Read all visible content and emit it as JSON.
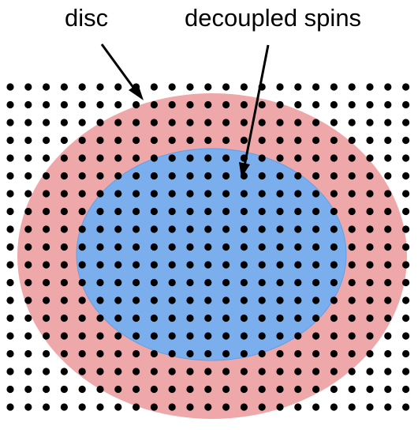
{
  "labels": {
    "disc": "disc",
    "decoupled_spins": "decoupled spins"
  },
  "colors": {
    "disc": "#e98b8e",
    "decoupled": "#74aef0",
    "dot": "#000000",
    "background": "#ffffff"
  },
  "lattice": {
    "columns": 23,
    "rows": 19
  }
}
